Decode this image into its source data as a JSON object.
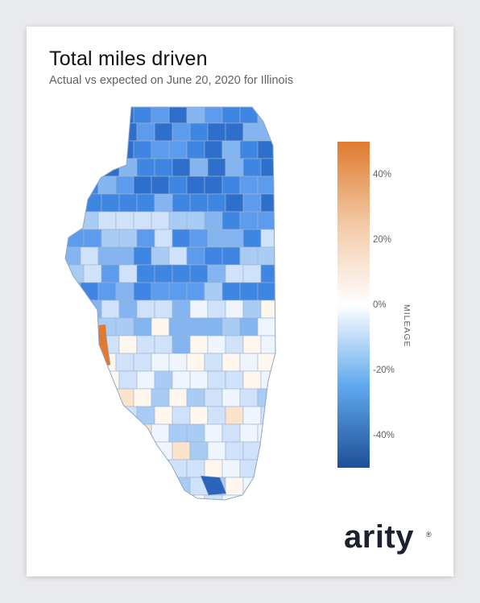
{
  "header": {
    "title": "Total miles driven",
    "subtitle": "Actual vs expected on June 20, 2020 for Illinois"
  },
  "legend": {
    "title": "MILEAGE",
    "ticks": [
      "40%",
      "20%",
      "0%",
      "-20%",
      "-40%"
    ],
    "range": [
      -50,
      50
    ],
    "gradient_colors": [
      "#e07a2e",
      "#f2c9a4",
      "#ffffff",
      "#5fa8ee",
      "#1f4f96"
    ]
  },
  "brand": {
    "logo": "arity",
    "registered_mark": "®"
  },
  "colors": {
    "positive": "#e07a2e",
    "neutral": "#ffffff",
    "negative": "#3d8ee4",
    "strong_negative": "#2b64b8"
  }
}
